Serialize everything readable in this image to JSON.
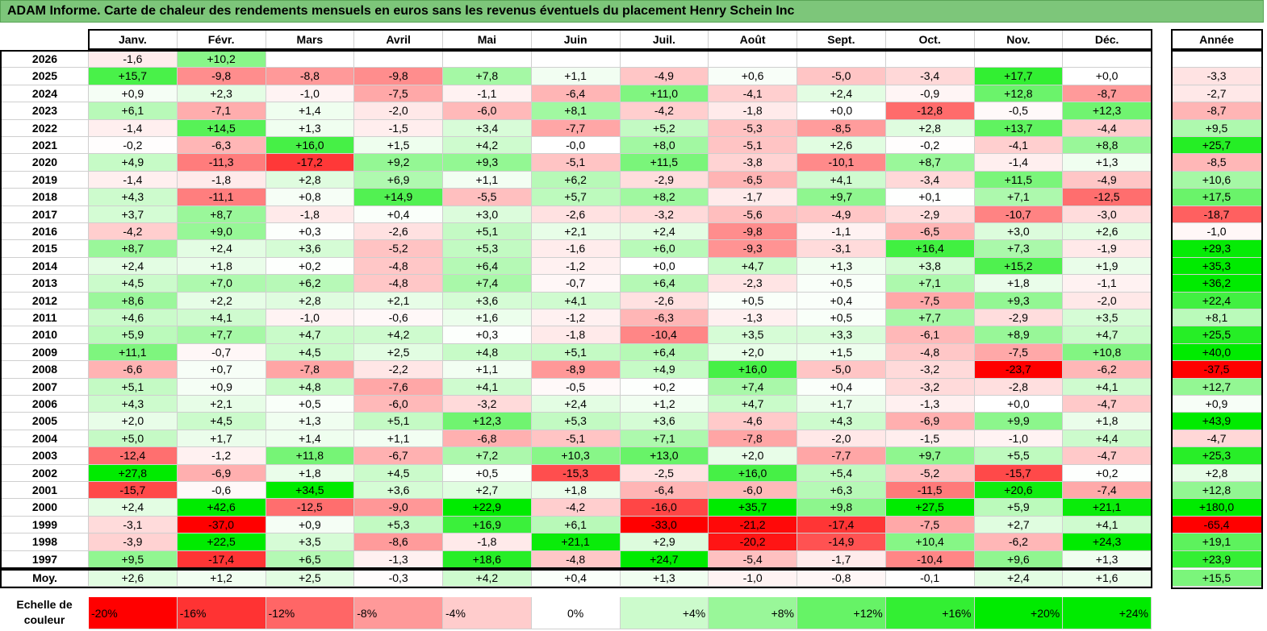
{
  "title": "ADAM Informe. Carte de chaleur des rendements mensuels en euros sans les revenus éventuels du placement Henry Schein Inc",
  "chart_data": {
    "type": "heatmap",
    "title": "ADAM Informe. Carte de chaleur des rendements mensuels en euros sans les revenus éventuels du placement Henry Schein Inc",
    "columns": [
      "Janv.",
      "Févr.",
      "Mars",
      "Avril",
      "Mai",
      "Juin",
      "Juil.",
      "Août",
      "Sept.",
      "Oct.",
      "Nov.",
      "Déc."
    ],
    "year_header": "Année",
    "rows": [
      {
        "label": "2026",
        "values": [
          "-1,6",
          "+10,2",
          "",
          "",
          "",
          "",
          "",
          "",
          "",
          "",
          "",
          ""
        ],
        "year": ""
      },
      {
        "label": "2025",
        "values": [
          "+15,7",
          "-9,8",
          "-8,8",
          "-9,8",
          "+7,8",
          "+1,1",
          "-4,9",
          "+0,6",
          "-5,0",
          "-3,4",
          "+17,7",
          "+0,0"
        ],
        "year": "-3,3"
      },
      {
        "label": "2024",
        "values": [
          "+0,9",
          "+2,3",
          "-1,0",
          "-7,5",
          "-1,1",
          "-6,4",
          "+11,0",
          "-4,1",
          "+2,4",
          "-0,9",
          "+12,8",
          "-8,7"
        ],
        "year": "-2,7"
      },
      {
        "label": "2023",
        "values": [
          "+6,1",
          "-7,1",
          "+1,4",
          "-2,0",
          "-6,0",
          "+8,1",
          "-4,2",
          "-1,8",
          "+0,0",
          "-12,8",
          "-0,5",
          "+12,3"
        ],
        "year": "-8,7"
      },
      {
        "label": "2022",
        "values": [
          "-1,4",
          "+14,5",
          "+1,3",
          "-1,5",
          "+3,4",
          "-7,7",
          "+5,2",
          "-5,3",
          "-8,5",
          "+2,8",
          "+13,7",
          "-4,4"
        ],
        "year": "+9,5"
      },
      {
        "label": "2021",
        "values": [
          "-0,2",
          "-6,3",
          "+16,0",
          "+1,5",
          "+4,2",
          "-0,0",
          "+8,0",
          "-5,1",
          "+2,6",
          "-0,2",
          "-4,1",
          "+8,8"
        ],
        "year": "+25,7"
      },
      {
        "label": "2020",
        "values": [
          "+4,9",
          "-11,3",
          "-17,2",
          "+9,2",
          "+9,3",
          "-5,1",
          "+11,5",
          "-3,8",
          "-10,1",
          "+8,7",
          "-1,4",
          "+1,3"
        ],
        "year": "-8,5"
      },
      {
        "label": "2019",
        "values": [
          "-1,4",
          "-1,8",
          "+2,8",
          "+6,9",
          "+1,1",
          "+6,2",
          "-2,9",
          "-6,5",
          "+4,1",
          "-3,4",
          "+11,5",
          "-4,9"
        ],
        "year": "+10,6"
      },
      {
        "label": "2018",
        "values": [
          "+4,3",
          "-11,1",
          "+0,8",
          "+14,9",
          "-5,5",
          "+5,7",
          "+8,2",
          "-1,7",
          "+9,7",
          "+0,1",
          "+7,1",
          "-12,5"
        ],
        "year": "+17,5"
      },
      {
        "label": "2017",
        "values": [
          "+3,7",
          "+8,7",
          "-1,8",
          "+0,4",
          "+3,0",
          "-2,6",
          "-3,2",
          "-5,6",
          "-4,9",
          "-2,9",
          "-10,7",
          "-3,0"
        ],
        "year": "-18,7"
      },
      {
        "label": "2016",
        "values": [
          "-4,2",
          "+9,0",
          "+0,3",
          "-2,6",
          "+5,1",
          "+2,1",
          "+2,4",
          "-9,8",
          "-1,1",
          "-6,5",
          "+3,0",
          "+2,6"
        ],
        "year": "-1,0"
      },
      {
        "label": "2015",
        "values": [
          "+8,7",
          "+2,4",
          "+3,6",
          "-5,2",
          "+5,3",
          "-1,6",
          "+6,0",
          "-9,3",
          "-3,1",
          "+16,4",
          "+7,3",
          "-1,9"
        ],
        "year": "+29,3"
      },
      {
        "label": "2014",
        "values": [
          "+2,4",
          "+1,8",
          "+0,2",
          "-4,8",
          "+6,4",
          "-1,2",
          "+0,0",
          "+4,7",
          "+1,3",
          "+3,8",
          "+15,2",
          "+1,9"
        ],
        "year": "+35,3"
      },
      {
        "label": "2013",
        "values": [
          "+4,5",
          "+7,0",
          "+6,2",
          "-4,8",
          "+7,4",
          "-0,7",
          "+6,4",
          "-2,3",
          "+0,5",
          "+7,1",
          "+1,8",
          "-1,1"
        ],
        "year": "+36,2"
      },
      {
        "label": "2012",
        "values": [
          "+8,6",
          "+2,2",
          "+2,8",
          "+2,1",
          "+3,6",
          "+4,1",
          "-2,6",
          "+0,5",
          "+0,4",
          "-7,5",
          "+9,3",
          "-2,0"
        ],
        "year": "+22,4"
      },
      {
        "label": "2011",
        "values": [
          "+4,6",
          "+4,1",
          "-1,0",
          "-0,6",
          "+1,6",
          "-1,2",
          "-6,3",
          "-1,3",
          "+0,5",
          "+7,7",
          "-2,9",
          "+3,5"
        ],
        "year": "+8,1"
      },
      {
        "label": "2010",
        "values": [
          "+5,9",
          "+7,7",
          "+4,7",
          "+4,2",
          "+0,3",
          "-1,8",
          "-10,4",
          "+3,5",
          "+3,3",
          "-6,1",
          "+8,9",
          "+4,7"
        ],
        "year": "+25,5"
      },
      {
        "label": "2009",
        "values": [
          "+11,1",
          "-0,7",
          "+4,5",
          "+2,5",
          "+4,8",
          "+5,1",
          "+6,4",
          "+2,0",
          "+1,5",
          "-4,8",
          "-7,5",
          "+10,8"
        ],
        "year": "+40,0"
      },
      {
        "label": "2008",
        "values": [
          "-6,6",
          "+0,7",
          "-7,8",
          "-2,2",
          "+1,1",
          "-8,9",
          "+4,9",
          "+16,0",
          "-5,0",
          "-3,2",
          "-23,7",
          "-6,2"
        ],
        "year": "-37,5"
      },
      {
        "label": "2007",
        "values": [
          "+5,1",
          "+0,9",
          "+4,8",
          "-7,6",
          "+4,1",
          "-0,5",
          "+0,2",
          "+7,4",
          "+0,4",
          "-3,2",
          "-2,8",
          "+4,1"
        ],
        "year": "+12,7"
      },
      {
        "label": "2006",
        "values": [
          "+4,3",
          "+2,1",
          "+0,5",
          "-6,0",
          "-3,2",
          "+2,4",
          "+1,2",
          "+4,7",
          "+1,7",
          "-1,3",
          "+0,0",
          "-4,7"
        ],
        "year": "+0,9"
      },
      {
        "label": "2005",
        "values": [
          "+2,0",
          "+4,5",
          "+1,3",
          "+5,1",
          "+12,3",
          "+5,3",
          "+3,6",
          "-4,6",
          "+4,3",
          "-6,9",
          "+9,9",
          "+1,8"
        ],
        "year": "+43,9"
      },
      {
        "label": "2004",
        "values": [
          "+5,0",
          "+1,7",
          "+1,4",
          "+1,1",
          "-6,8",
          "-5,1",
          "+7,1",
          "-7,8",
          "-2,0",
          "-1,5",
          "-1,0",
          "+4,4"
        ],
        "year": "-4,7"
      },
      {
        "label": "2003",
        "values": [
          "-12,4",
          "-1,2",
          "+11,8",
          "-6,7",
          "+7,2",
          "+10,3",
          "+13,0",
          "+2,0",
          "-7,7",
          "+9,7",
          "+5,5",
          "-4,7"
        ],
        "year": "+25,3"
      },
      {
        "label": "2002",
        "values": [
          "+27,8",
          "-6,9",
          "+1,8",
          "+4,5",
          "+0,5",
          "-15,3",
          "-2,5",
          "+16,0",
          "+5,4",
          "-5,2",
          "-15,7",
          "+0,2"
        ],
        "year": "+2,8"
      },
      {
        "label": "2001",
        "values": [
          "-15,7",
          "-0,6",
          "+34,5",
          "+3,6",
          "+2,7",
          "+1,8",
          "-6,4",
          "-6,0",
          "+6,3",
          "-11,5",
          "+20,6",
          "-7,4"
        ],
        "year": "+12,8"
      },
      {
        "label": "2000",
        "values": [
          "+2,4",
          "+42,6",
          "-12,5",
          "-9,0",
          "+22,9",
          "-4,2",
          "-16,0",
          "+35,7",
          "+9,8",
          "+27,5",
          "+5,9",
          "+21,1"
        ],
        "year": "+180,0"
      },
      {
        "label": "1999",
        "values": [
          "-3,1",
          "-37,0",
          "+0,9",
          "+5,3",
          "+16,9",
          "+6,1",
          "-33,0",
          "-21,2",
          "-17,4",
          "-7,5",
          "+2,7",
          "+4,1"
        ],
        "year": "-65,4"
      },
      {
        "label": "1998",
        "values": [
          "-3,9",
          "+22,5",
          "+3,5",
          "-8,6",
          "-1,8",
          "+21,1",
          "+2,9",
          "-20,2",
          "-14,9",
          "+10,4",
          "-6,2",
          "+24,3"
        ],
        "year": "+19,1"
      },
      {
        "label": "1997",
        "values": [
          "+9,5",
          "-17,4",
          "+6,5",
          "-1,3",
          "+18,6",
          "-4,8",
          "+24,7",
          "-5,4",
          "-1,7",
          "-10,4",
          "+9,6",
          "+1,3"
        ],
        "year": "+23,9"
      }
    ],
    "average": {
      "label": "Moy.",
      "values": [
        "+2,6",
        "+1,2",
        "+2,5",
        "-0,3",
        "+4,2",
        "+0,4",
        "+1,3",
        "-1,0",
        "-0,8",
        "-0,1",
        "+2,4",
        "+1,6"
      ],
      "year": "+15,5"
    },
    "scale": {
      "label": "Echelle de couleur",
      "labels": [
        "-20%",
        "-16%",
        "-12%",
        "-8%",
        "-4%",
        "0%",
        "+4%",
        "+8%",
        "+12%",
        "+16%",
        "+20%",
        "+24%"
      ],
      "values": [
        -20,
        -16,
        -12,
        -8,
        -4,
        0,
        4,
        8,
        12,
        16,
        20,
        24
      ]
    },
    "colors": {
      "negative": "#ff0000",
      "positive": "#00e600",
      "neutral": "#ffffff",
      "title_bg": "#7dc67a"
    }
  }
}
